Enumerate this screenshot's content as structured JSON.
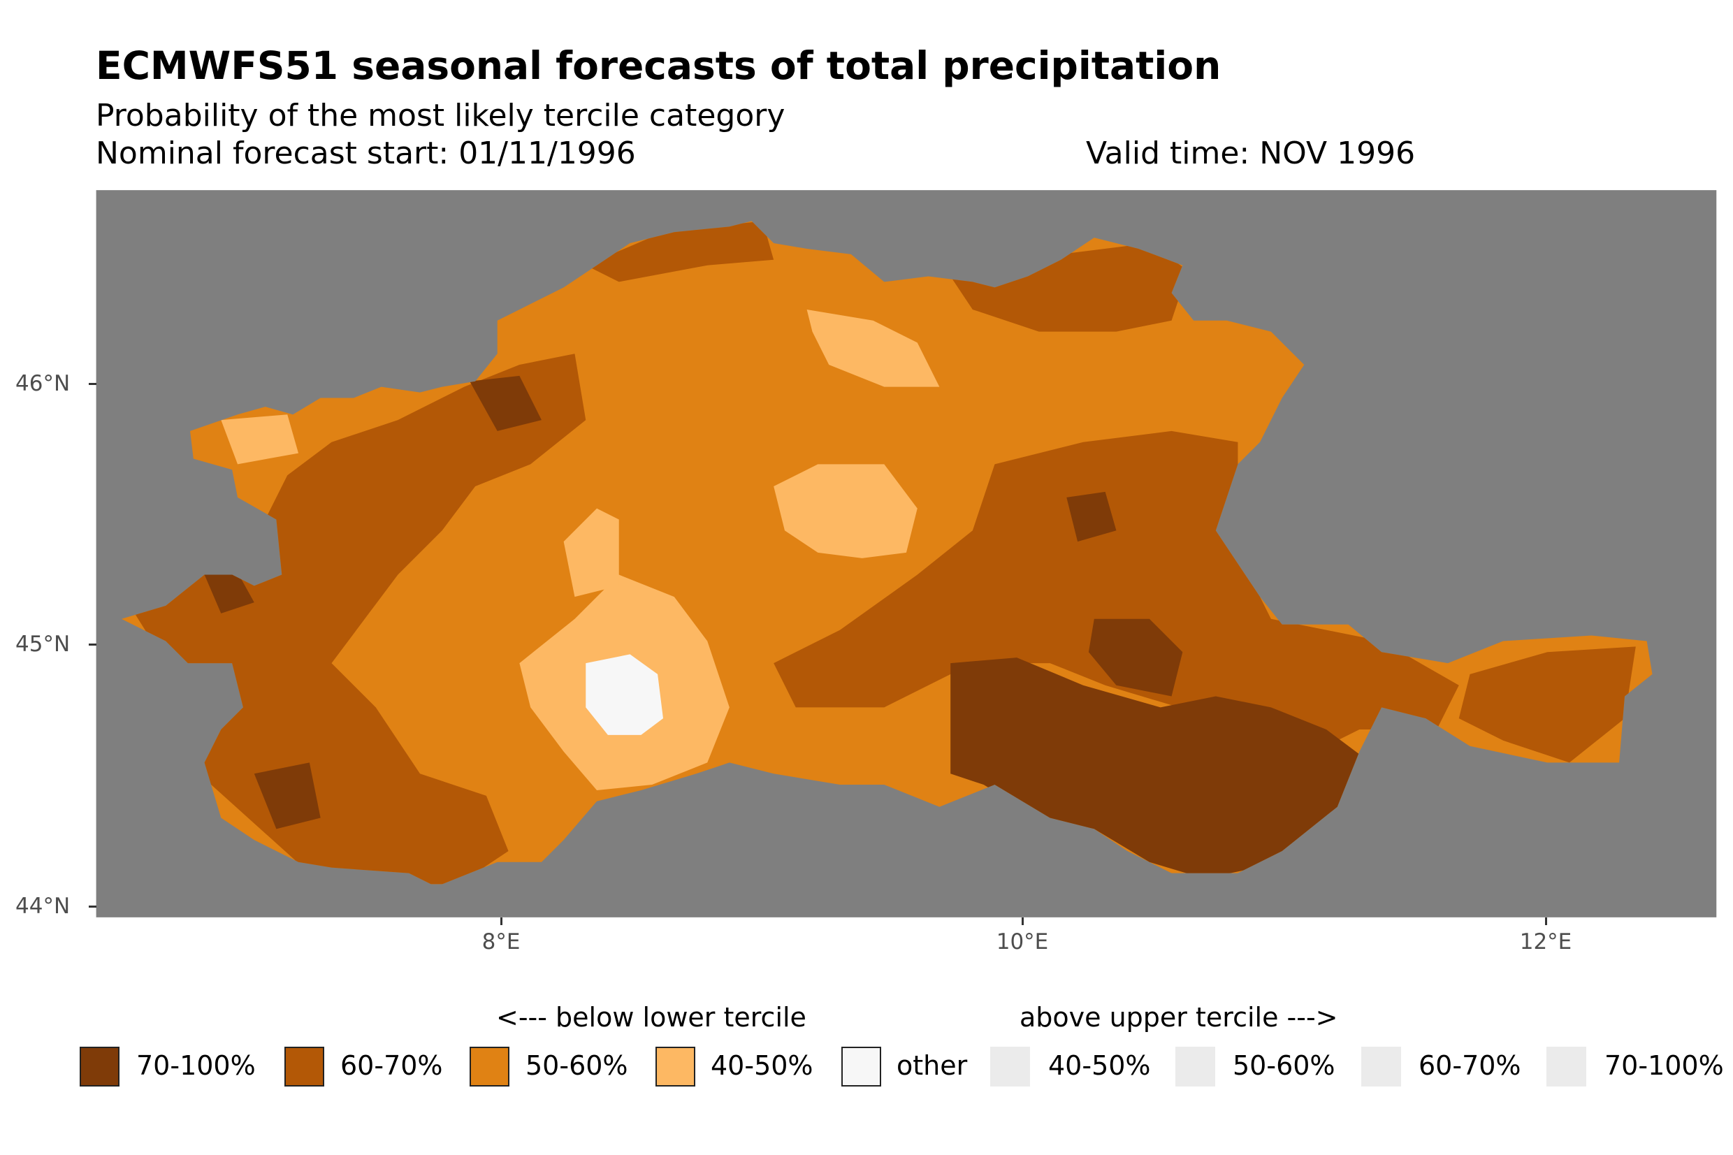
{
  "header": {
    "title": "ECMWFS51 seasonal forecasts of total precipitation",
    "subtitle": "Probability of the most likely tercile category",
    "caption_left": "Nominal forecast start: 01/11/1996",
    "caption_right": "Valid time: NOV 1996"
  },
  "axes": {
    "y_ticks": [
      "46°N",
      "45°N",
      "44°N"
    ],
    "x_ticks": [
      "8°E",
      "10°E",
      "12°E"
    ]
  },
  "map": {
    "background_color": "#7f7f7f",
    "dominant_category": "50-60% below lower tercile"
  },
  "legend": {
    "below_title": "<--- below lower tercile",
    "above_title": "above upper tercile --->",
    "items": [
      {
        "label": "70-100%",
        "color": "#7f3b08",
        "group": "below"
      },
      {
        "label": "60-70%",
        "color": "#b35806",
        "group": "below"
      },
      {
        "label": "50-60%",
        "color": "#e08214",
        "group": "below"
      },
      {
        "label": "40-50%",
        "color": "#fdb863",
        "group": "below"
      },
      {
        "label": "other",
        "color": "#f7f7f7",
        "group": "other"
      },
      {
        "label": "40-50%",
        "color": "#ebebeb",
        "group": "above"
      },
      {
        "label": "50-60%",
        "color": "#ebebeb",
        "group": "above"
      },
      {
        "label": "60-70%",
        "color": "#ebebeb",
        "group": "above"
      },
      {
        "label": "70-100%",
        "color": "#ebebeb",
        "group": "above"
      }
    ]
  }
}
